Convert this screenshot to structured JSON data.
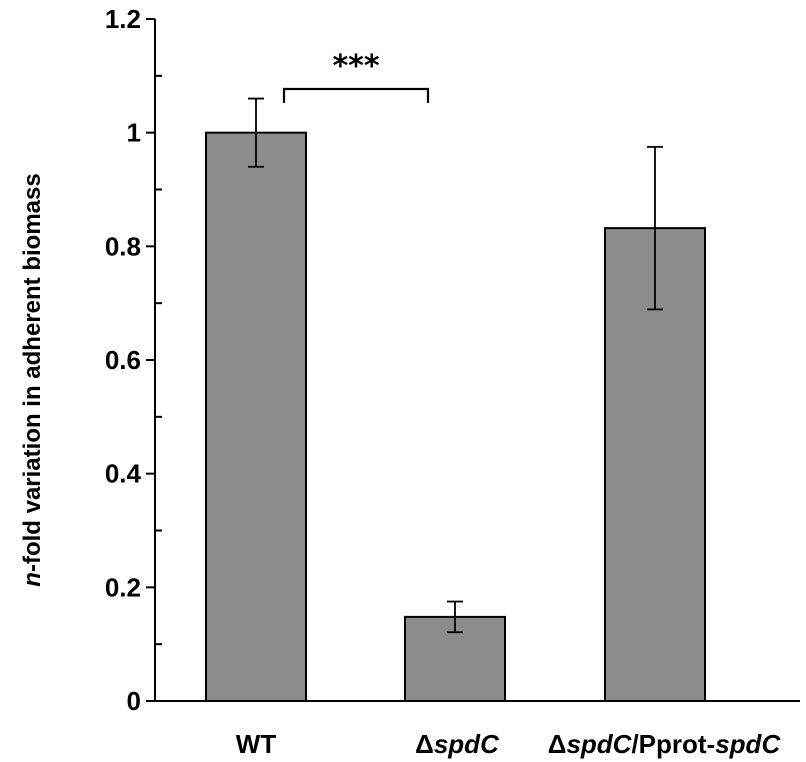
{
  "chart_data": {
    "type": "bar",
    "categories": [
      {
        "parts": [
          {
            "text": "WT",
            "italic": false
          }
        ]
      },
      {
        "parts": [
          {
            "text": "Δ",
            "italic": false
          },
          {
            "text": "spdC",
            "italic": true
          }
        ]
      },
      {
        "parts": [
          {
            "text": "Δ",
            "italic": false
          },
          {
            "text": "spdC",
            "italic": true
          },
          {
            "text": "/Pprot-",
            "italic": false
          },
          {
            "text": "spdC",
            "italic": true
          }
        ]
      }
    ],
    "values": [
      1.0,
      0.148,
      0.832
    ],
    "errors": [
      0.06,
      0.027,
      0.143
    ],
    "ylabel": {
      "italic_prefix": "n",
      "rest": "-fold variation in adherent biomass"
    },
    "ylim": [
      0,
      1.2
    ],
    "yticks": [
      "0",
      "0.2",
      "0.4",
      "0.6",
      "0.8",
      "1",
      "1.2"
    ],
    "ytick_values": [
      0,
      0.2,
      0.4,
      0.6,
      0.8,
      1.0,
      1.2
    ],
    "bar_color": "#8c8c8c",
    "significance": {
      "label": "***",
      "between": [
        0,
        1
      ],
      "level": 1.1
    }
  }
}
